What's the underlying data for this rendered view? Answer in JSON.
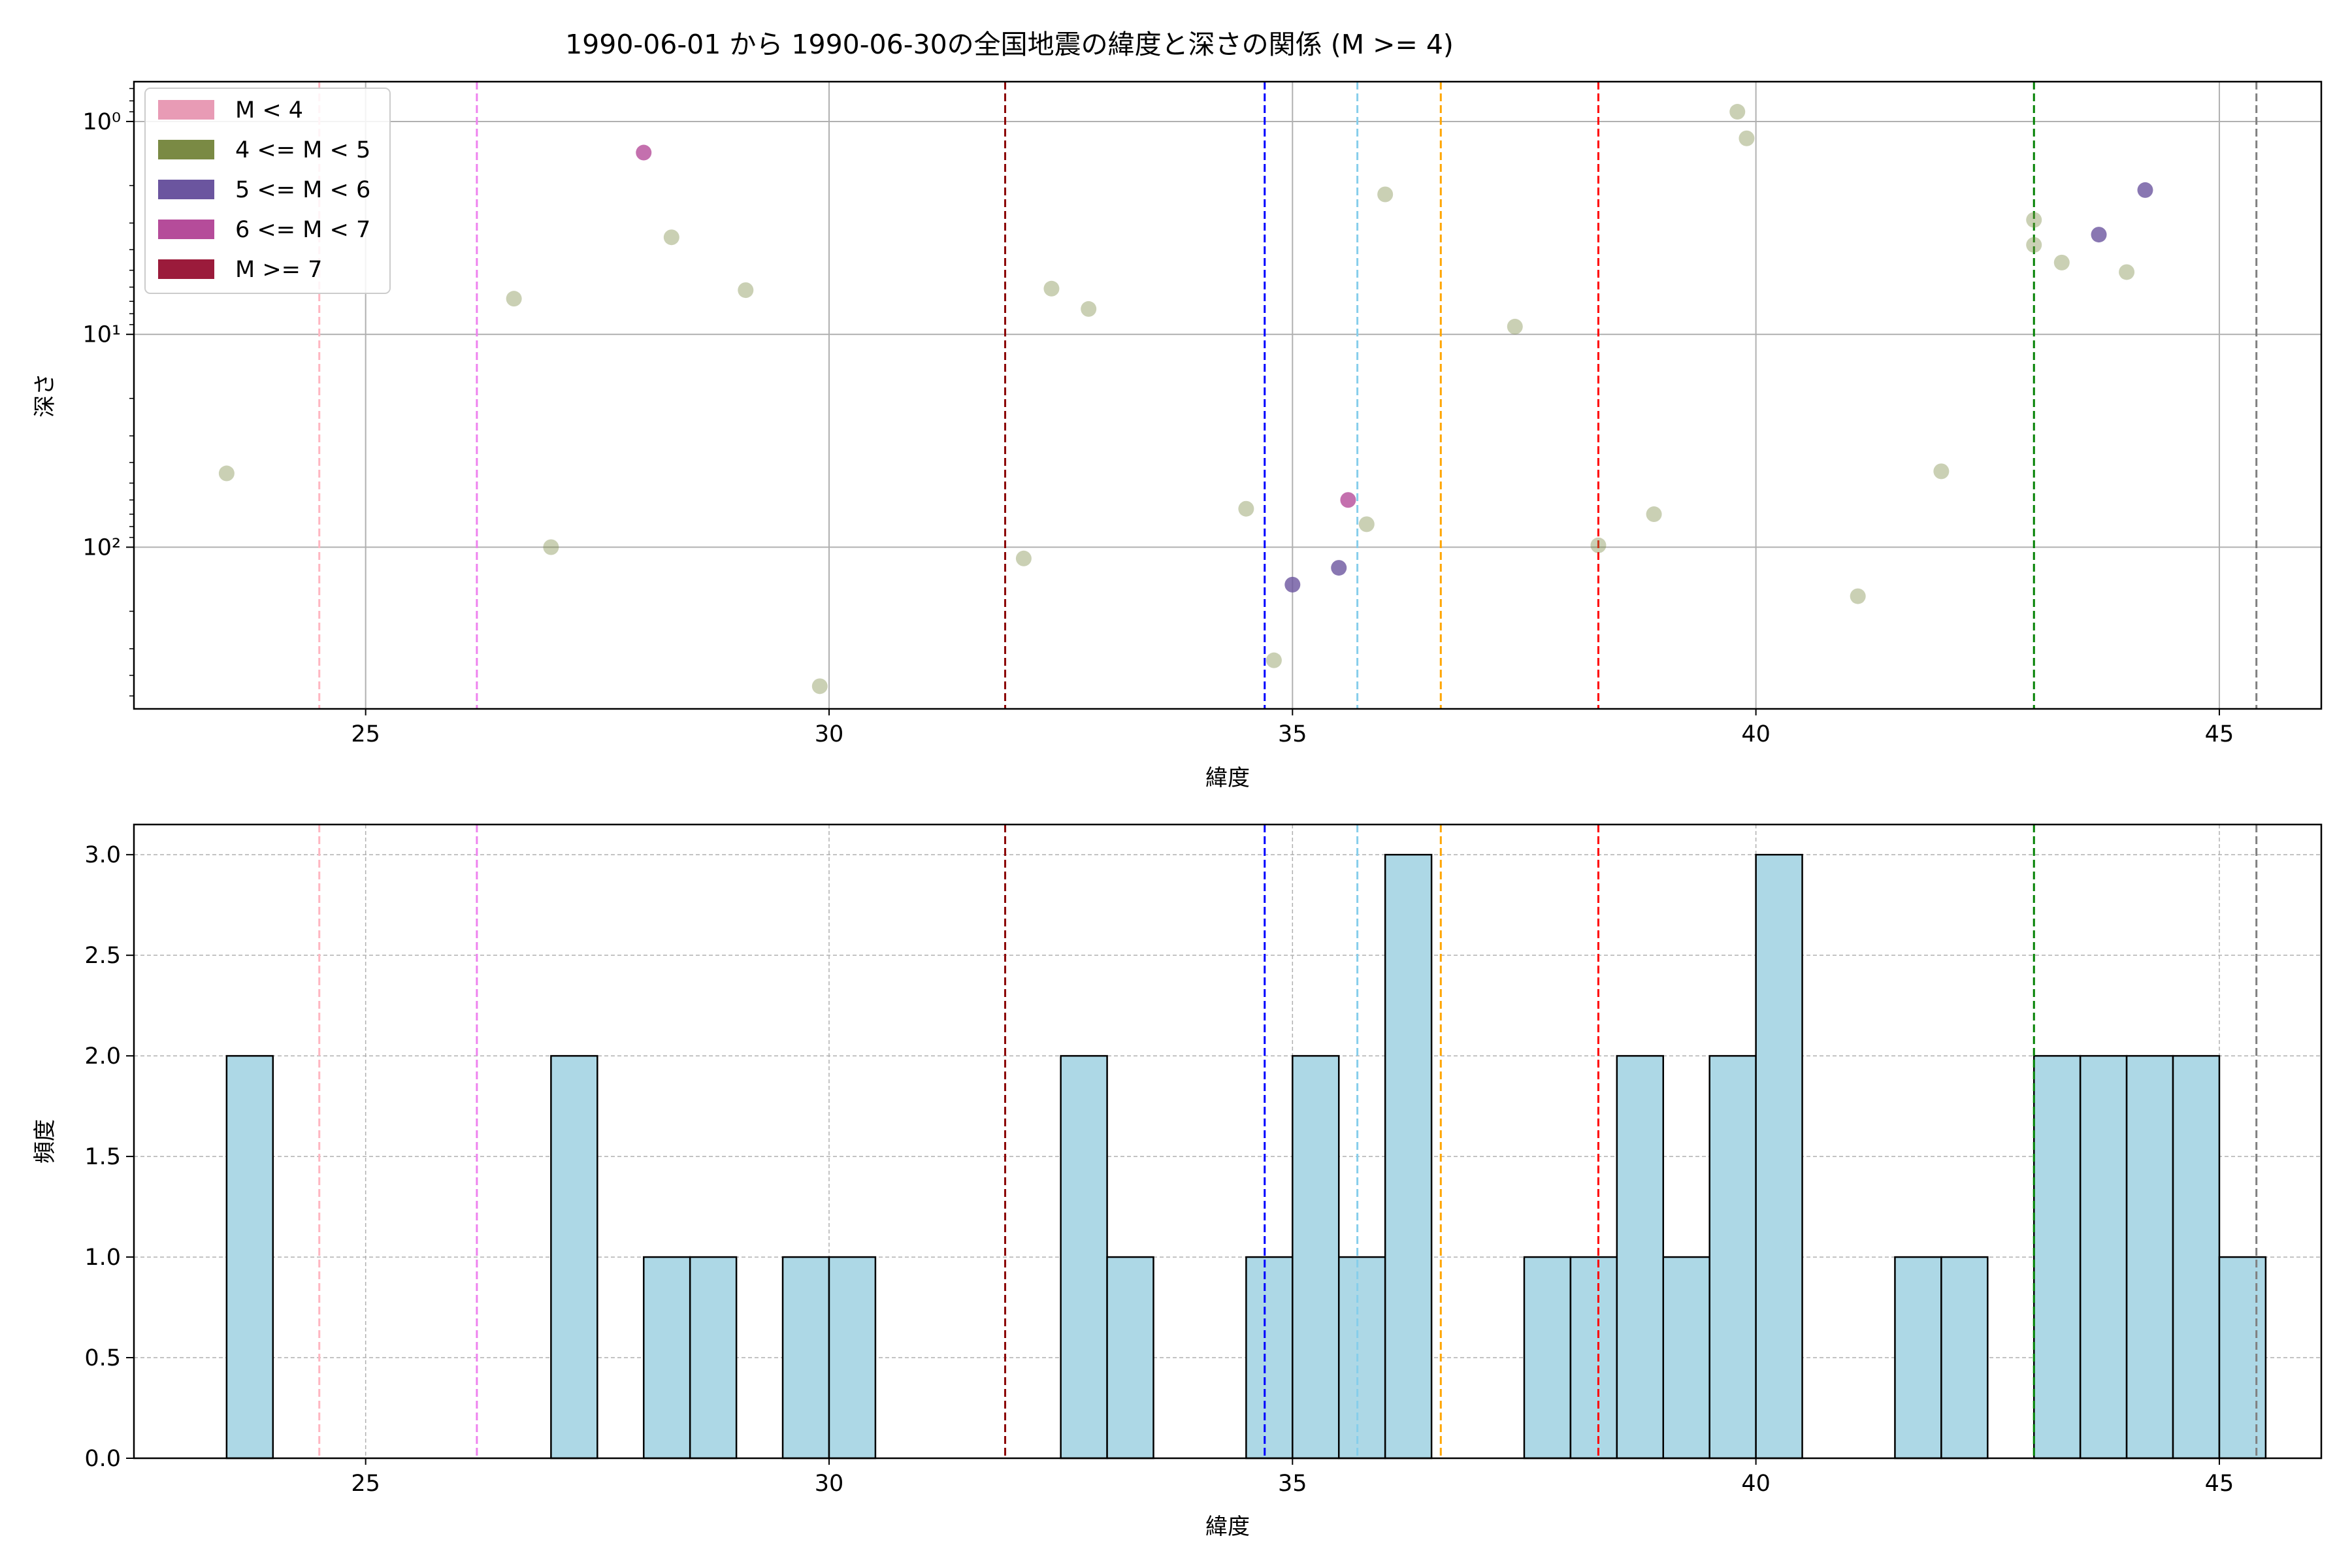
{
  "figure_title": "1990-06-01 から 1990-06-30の全国地震の緯度と深さの関係 (M >= 4)",
  "colors": {
    "marker_m4_5": "#7a8a44",
    "marker_m5_6": "#6b559f",
    "marker_m6_7": "#b54c9a",
    "hist_fill": "#add8e6",
    "hist_edge": "#000000",
    "grid": "#b0b0b0"
  },
  "chart_data": [
    {
      "type": "scatter",
      "xlabel": "緯度",
      "ylabel": "深さ",
      "xlim": [
        22.5,
        46.1
      ],
      "ylim": [
        0.65,
        575
      ],
      "y_scale": "log",
      "y_inverted": true,
      "x_ticks": [
        25,
        30,
        35,
        40,
        45
      ],
      "y_ticks": [
        {
          "value": 1,
          "label": "10⁰"
        },
        {
          "value": 10,
          "label": "10¹"
        },
        {
          "value": 100,
          "label": "10²"
        }
      ],
      "grid": true,
      "legend": {
        "position": "top-left",
        "entries": [
          {
            "label": "M < 4",
            "color": "#e89bb5"
          },
          {
            "label": "4 <= M < 5",
            "color": "#7a8a44"
          },
          {
            "label": "5 <= M < 6",
            "color": "#6b559f"
          },
          {
            "label": "6 <= M < 7",
            "color": "#b54c9a"
          },
          {
            "label": "M >= 7",
            "color": "#9b1b3b"
          }
        ]
      },
      "vlines": [
        {
          "x": 24.5,
          "color": "#ffb6c1"
        },
        {
          "x": 26.2,
          "color": "#ee82ee"
        },
        {
          "x": 31.9,
          "color": "#8b0000"
        },
        {
          "x": 34.7,
          "color": "#0000ff"
        },
        {
          "x": 35.7,
          "color": "#87ceeb"
        },
        {
          "x": 36.6,
          "color": "#ffa500"
        },
        {
          "x": 38.3,
          "color": "#ff0000"
        },
        {
          "x": 43.0,
          "color": "#008000"
        },
        {
          "x": 45.4,
          "color": "#808080"
        }
      ],
      "series": [
        {
          "name": "4 <= M < 5",
          "color": "#7a8a44",
          "points": [
            [
              23.5,
              45
            ],
            [
              26.6,
              6.8
            ],
            [
              27.0,
              100
            ],
            [
              28.3,
              3.5
            ],
            [
              29.1,
              6.2
            ],
            [
              29.9,
              450
            ],
            [
              32.1,
              113
            ],
            [
              32.4,
              6.1
            ],
            [
              32.8,
              7.6
            ],
            [
              34.5,
              66
            ],
            [
              34.8,
              340
            ],
            [
              35.8,
              78
            ],
            [
              36.0,
              2.2
            ],
            [
              37.4,
              9.2
            ],
            [
              38.3,
              98
            ],
            [
              38.9,
              70
            ],
            [
              39.8,
              0.9
            ],
            [
              39.9,
              1.2
            ],
            [
              41.1,
              170
            ],
            [
              42.0,
              44
            ],
            [
              43.0,
              2.9
            ],
            [
              43.0,
              3.8
            ],
            [
              43.3,
              4.6
            ],
            [
              44.0,
              5.1
            ]
          ]
        },
        {
          "name": "5 <= M < 6",
          "color": "#6b559f",
          "points": [
            [
              35.0,
              150
            ],
            [
              35.5,
              125
            ],
            [
              43.7,
              3.4
            ],
            [
              44.2,
              2.1
            ]
          ]
        },
        {
          "name": "6 <= M < 7",
          "color": "#b54c9a",
          "points": [
            [
              28.0,
              1.4
            ],
            [
              35.6,
              60
            ]
          ]
        }
      ]
    },
    {
      "type": "bar",
      "xlabel": "緯度",
      "ylabel": "頻度",
      "xlim": [
        22.5,
        46.1
      ],
      "ylim": [
        0,
        3.15
      ],
      "x_ticks": [
        25,
        30,
        35,
        40,
        45
      ],
      "y_ticks": [
        0.0,
        0.5,
        1.0,
        1.5,
        2.0,
        2.5,
        3.0
      ],
      "y_tick_labels": [
        "0.0",
        "0.5",
        "1.0",
        "1.5",
        "2.0",
        "2.5",
        "3.0"
      ],
      "grid": true,
      "bin_start": 23.5,
      "bin_width": 0.5,
      "values": [
        2,
        0,
        0,
        0,
        0,
        0,
        0,
        2,
        0,
        1,
        1,
        0,
        1,
        1,
        0,
        0,
        0,
        0,
        2,
        1,
        0,
        0,
        1,
        2,
        1,
        3,
        0,
        0,
        1,
        1,
        2,
        1,
        2,
        3,
        0,
        0,
        1,
        1,
        0,
        2,
        2,
        2,
        2,
        1
      ],
      "vlines": [
        {
          "x": 24.5,
          "color": "#ffb6c1"
        },
        {
          "x": 26.2,
          "color": "#ee82ee"
        },
        {
          "x": 31.9,
          "color": "#8b0000"
        },
        {
          "x": 34.7,
          "color": "#0000ff"
        },
        {
          "x": 35.7,
          "color": "#87ceeb"
        },
        {
          "x": 36.6,
          "color": "#ffa500"
        },
        {
          "x": 38.3,
          "color": "#ff0000"
        },
        {
          "x": 43.0,
          "color": "#008000"
        },
        {
          "x": 45.4,
          "color": "#808080"
        }
      ]
    }
  ]
}
